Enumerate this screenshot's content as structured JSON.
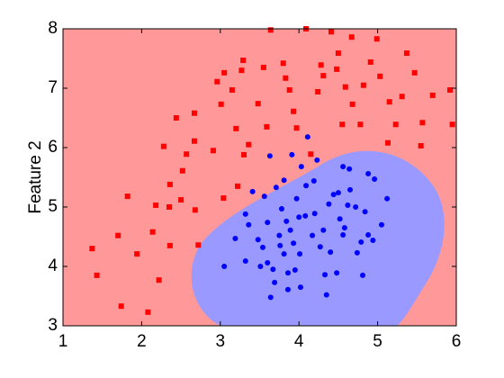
{
  "chart_data": {
    "type": "scatter",
    "y_label": "Feature 2",
    "xlim": [
      1,
      6
    ],
    "xticks": [
      1,
      2,
      3,
      4,
      5,
      6
    ],
    "ylim": [
      3,
      8
    ],
    "yticks": [
      3,
      4,
      5,
      6,
      7,
      8
    ],
    "series": [
      {
        "color": "#ff0000",
        "marker": "square",
        "x": [
          1.37,
          1.43,
          1.7,
          1.74,
          1.82,
          1.94,
          2.08,
          2.14,
          2.18,
          2.22,
          2.28,
          2.35,
          2.36,
          2.36,
          2.44,
          2.5,
          2.52,
          2.57,
          2.67,
          2.68,
          2.67,
          2.72,
          2.91,
          2.96,
          3.01,
          3.04,
          3.05,
          3.15,
          3.2,
          3.22,
          3.27,
          3.29,
          3.3,
          3.36,
          3.48,
          3.55,
          3.59,
          3.64,
          3.8,
          3.83,
          3.88,
          3.93,
          3.97,
          4.09,
          4.15,
          4.24,
          4.28,
          4.31,
          4.41,
          4.48,
          4.5,
          4.55,
          4.59,
          4.67,
          4.68,
          4.78,
          4.82,
          4.91,
          4.99,
          5.03,
          5.13,
          5.15,
          5.23,
          5.31,
          5.37,
          5.47,
          5.55,
          5.57,
          5.7,
          5.92,
          5.95
        ],
        "values": [
          4.3,
          3.85,
          4.52,
          3.33,
          5.18,
          4.21,
          3.23,
          4.58,
          5.03,
          3.77,
          6.02,
          5.0,
          5.38,
          4.35,
          6.5,
          5.12,
          5.61,
          5.89,
          6.11,
          4.95,
          6.58,
          4.36,
          5.95,
          7.11,
          6.73,
          5.15,
          7.26,
          6.97,
          6.32,
          5.35,
          7.3,
          7.47,
          5.88,
          6.05,
          6.74,
          7.35,
          6.35,
          7.98,
          7.42,
          7.17,
          6.97,
          6.61,
          6.33,
          8.0,
          5.89,
          6.94,
          7.39,
          7.21,
          7.95,
          7.32,
          7.59,
          6.39,
          7.02,
          7.86,
          6.73,
          6.39,
          7.05,
          7.44,
          7.83,
          7.2,
          6.08,
          6.77,
          6.39,
          6.86,
          7.59,
          7.26,
          6.03,
          6.42,
          6.88,
          6.97,
          6.39
        ]
      },
      {
        "color": "#0000ff",
        "marker": "circle",
        "x": [
          3.05,
          3.19,
          3.32,
          3.32,
          3.36,
          3.41,
          3.48,
          3.51,
          3.54,
          3.56,
          3.6,
          3.6,
          3.63,
          3.64,
          3.67,
          3.69,
          3.71,
          3.75,
          3.76,
          3.78,
          3.81,
          3.81,
          3.84,
          3.86,
          3.86,
          3.89,
          3.91,
          3.93,
          3.95,
          3.97,
          4.0,
          4.01,
          4.02,
          4.03,
          4.08,
          4.09,
          4.11,
          4.17,
          4.19,
          4.2,
          4.23,
          4.27,
          4.31,
          4.33,
          4.35,
          4.38,
          4.4,
          4.44,
          4.48,
          4.5,
          4.52,
          4.56,
          4.56,
          4.58,
          4.62,
          4.64,
          4.65,
          4.72,
          4.74,
          4.79,
          4.81,
          4.84,
          4.88,
          4.88,
          4.94,
          4.96,
          5.05,
          5.12
        ],
        "values": [
          4.0,
          4.47,
          4.88,
          4.09,
          4.7,
          5.26,
          4.45,
          4.0,
          4.32,
          5.18,
          4.74,
          4.06,
          5.86,
          3.48,
          3.95,
          3.73,
          5.33,
          4.52,
          4.35,
          4.97,
          5.45,
          4.21,
          4.76,
          3.89,
          3.61,
          4.61,
          5.88,
          4.39,
          3.94,
          5.14,
          4.83,
          4.21,
          3.65,
          5.68,
          4.85,
          5.36,
          6.18,
          4.52,
          5.44,
          4.89,
          5.79,
          4.33,
          4.61,
          3.86,
          3.52,
          5.05,
          4.24,
          5.21,
          3.89,
          5.24,
          4.8,
          4.53,
          5.68,
          4.65,
          5.03,
          5.64,
          5.29,
          5.0,
          4.23,
          4.41,
          3.85,
          4.92,
          5.56,
          4.53,
          4.44,
          5.47,
          4.7,
          5.14
        ]
      }
    ]
  }
}
